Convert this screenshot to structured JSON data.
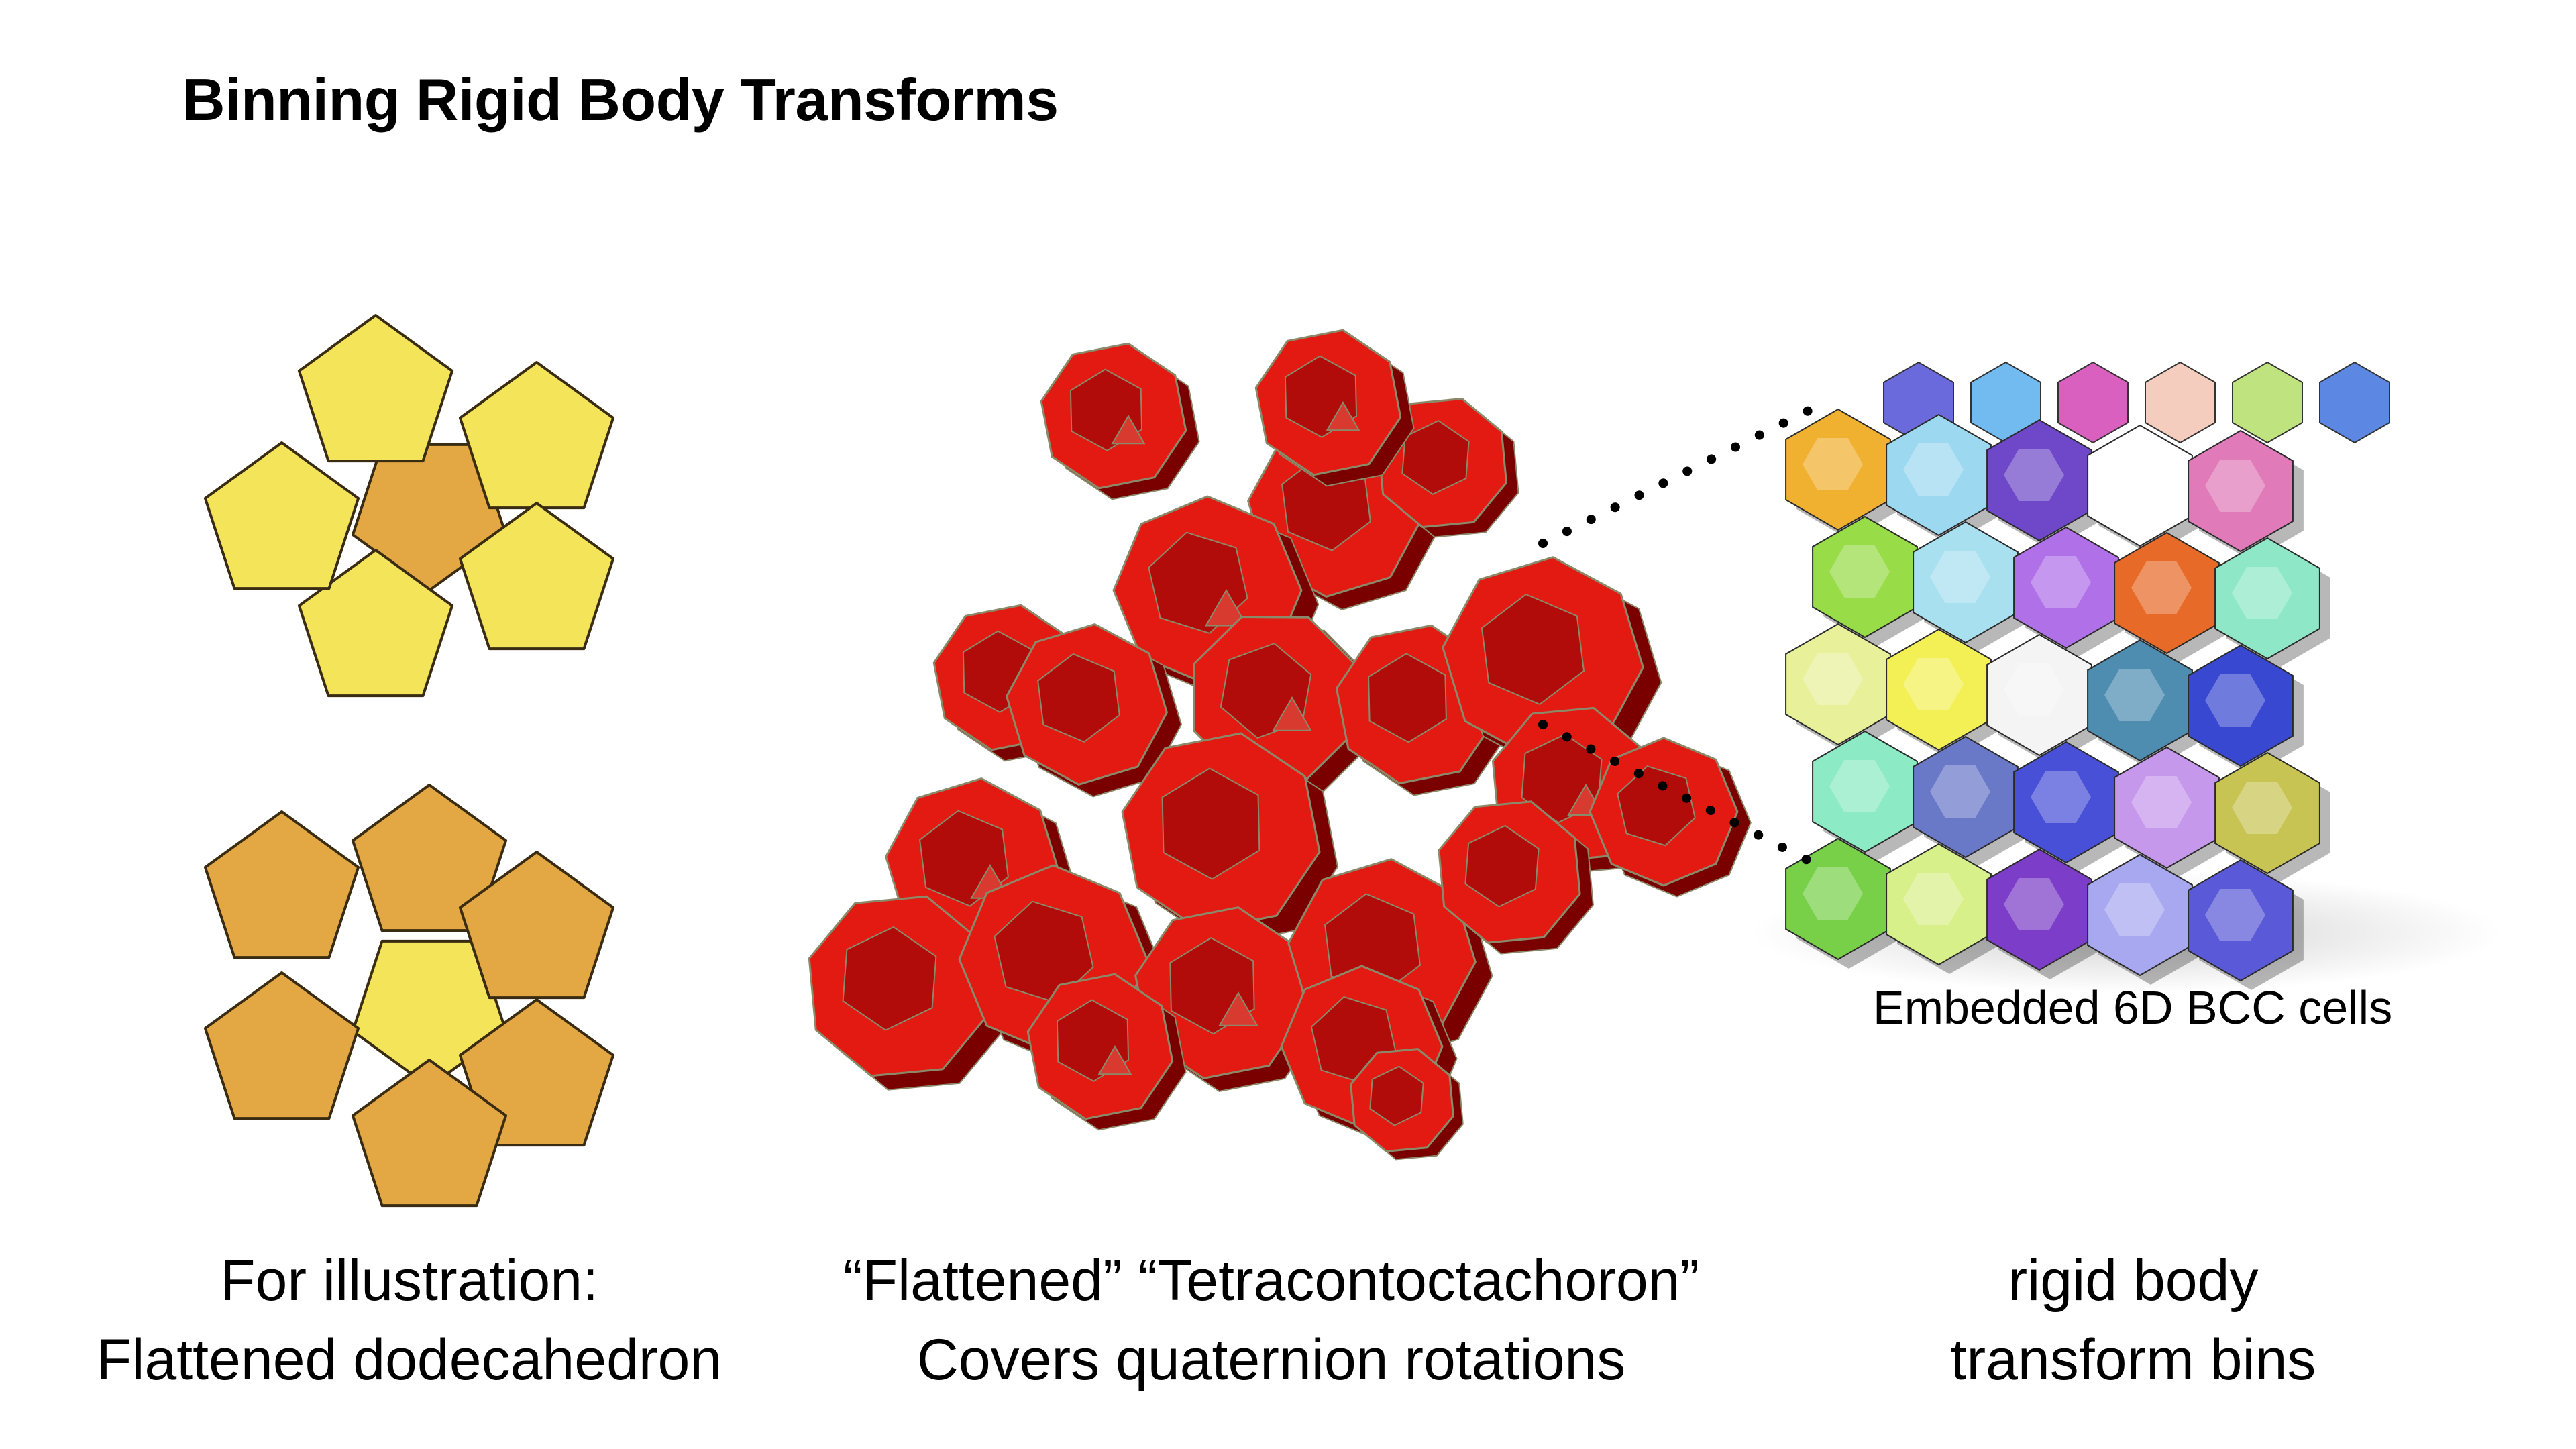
{
  "slide": {
    "title": "Binning Rigid Body Transforms"
  },
  "panels": [
    {
      "id": "dodecahedron",
      "caption_lines": [
        "For illustration:",
        "Flattened dodecahedron"
      ],
      "colors": {
        "light_face": "#f3e45a",
        "dark_face": "#e3a843",
        "edge": "#3a2c12"
      }
    },
    {
      "id": "tetracontoctachoron",
      "caption_lines": [
        "“Flattened” “Tetracontoctachoron”",
        "Covers quaternion rotations"
      ],
      "colors": {
        "face": "#e21a12",
        "shadow": "#7a0000",
        "mid": "#a80a08",
        "edge": "#8a8a6a"
      }
    },
    {
      "id": "bcc",
      "sublabel": "Embedded 6D BCC cells",
      "caption_lines": [
        "rigid body",
        "transform bins"
      ],
      "colors": [
        "#5a5ad8",
        "#62b4f0",
        "#d64fb8",
        "#f3c8b8",
        "#b8e070",
        "#4a7ae0",
        "#f0b030",
        "#9cd8f0",
        "#6e48c8",
        "#ffffff",
        "#e07ab8",
        "#98dc48",
        "#a8e0f0",
        "#b070e8",
        "#e86a28",
        "#8ee8c8",
        "#e8f09a",
        "#f2f055",
        "#f4f4f4",
        "#4e8cb0",
        "#3848d0",
        "#8cebc4",
        "#6a78c8",
        "#4850d8",
        "#c698ec",
        "#c8c454",
        "#78d048",
        "#d8f08a",
        "#7c3ec8",
        "#a8a8f0"
      ]
    }
  ]
}
